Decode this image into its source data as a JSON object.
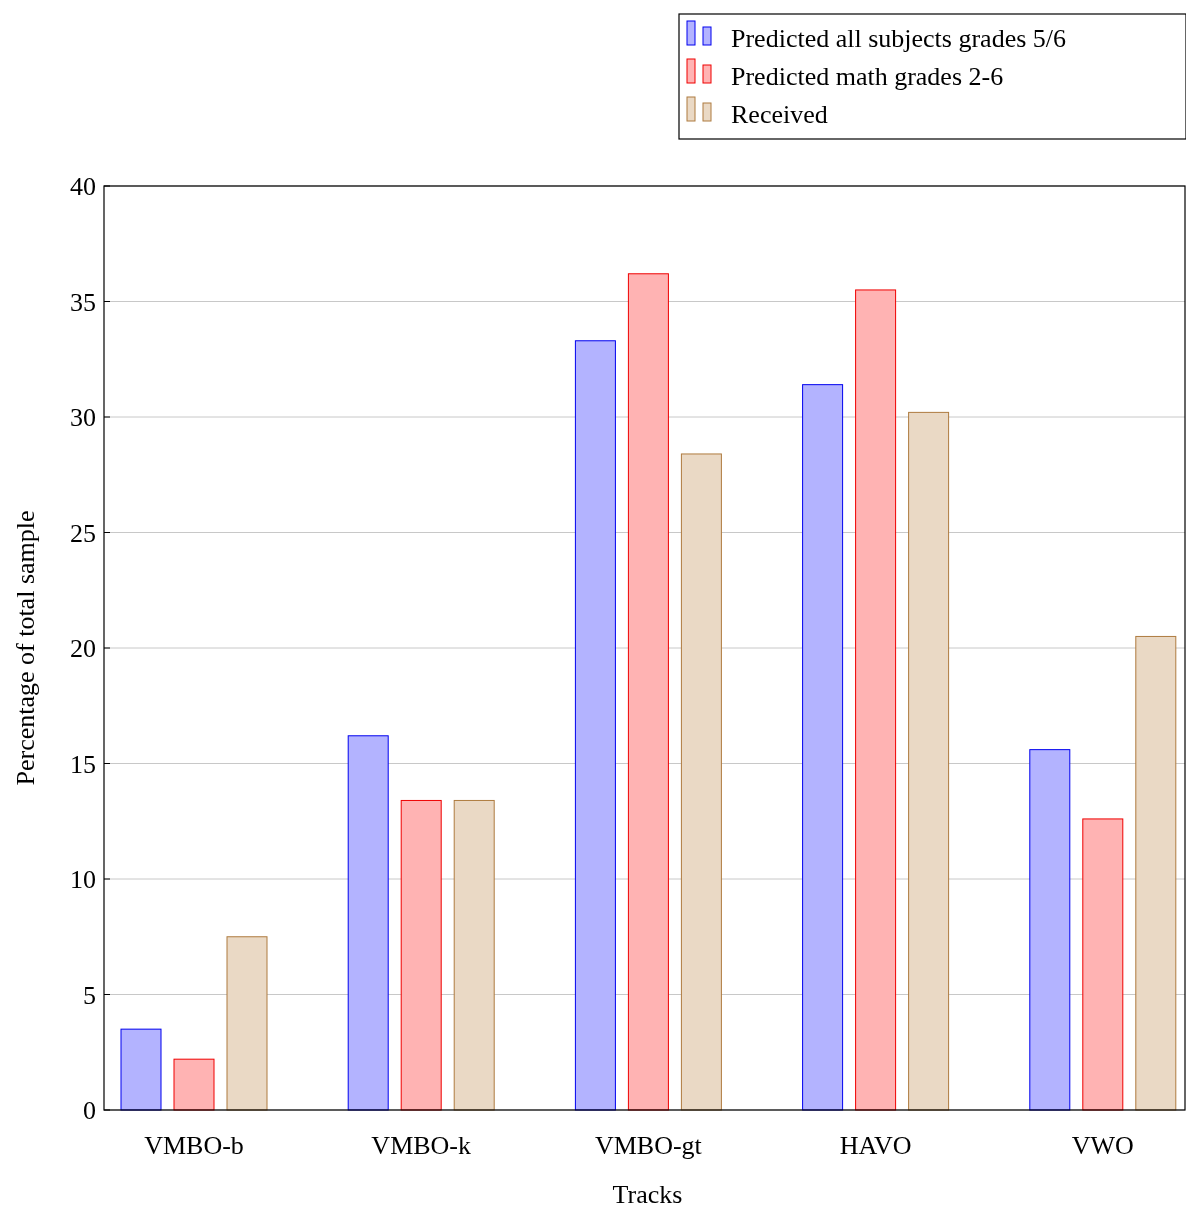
{
  "chart_data": {
    "type": "bar",
    "xlabel": "Tracks",
    "ylabel": "Percentage of total sample",
    "categories": [
      "VMBO-b",
      "VMBO-k",
      "VMBO-gt",
      "HAVO",
      "VWO"
    ],
    "series": [
      {
        "name": "Predicted all subjects grades 5/6",
        "color": "#b3b3ff",
        "values": [
          3.5,
          16.2,
          33.3,
          31.4,
          15.6
        ]
      },
      {
        "name": "Predicted math grades 2-6",
        "color": "#ffb3b3",
        "values": [
          2.2,
          13.4,
          36.2,
          35.5,
          12.6
        ]
      },
      {
        "name": "Received",
        "color": "#ead9c5",
        "values": [
          7.5,
          13.4,
          28.4,
          30.2,
          20.5
        ]
      }
    ],
    "ylim": [
      0,
      40
    ],
    "yticks": [
      0,
      5,
      10,
      15,
      20,
      25,
      30,
      35,
      40
    ],
    "grid": "y",
    "legend": "top right"
  }
}
